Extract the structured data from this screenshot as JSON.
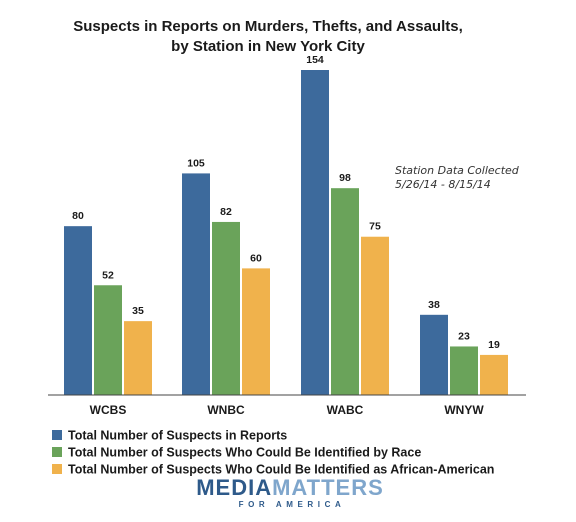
{
  "chart_data": {
    "type": "bar",
    "title": "Suspects in Reports on Murders, Thefts, and Assaults,",
    "subtitle": "by Station in New York City",
    "categories": [
      "WCBS",
      "WNBC",
      "WABC",
      "WNYW"
    ],
    "series": [
      {
        "name": "Total Number of Suspects in Reports",
        "color": "#3d6a9c",
        "values": [
          80,
          105,
          154,
          38
        ]
      },
      {
        "name": "Total Number of Suspects Who Could Be Identified by Race",
        "color": "#6aa35a",
        "values": [
          52,
          82,
          98,
          23
        ]
      },
      {
        "name": "Total Number of Suspects Who Could Be Identified as African-American",
        "color": "#f0b24c",
        "values": [
          35,
          60,
          75,
          19
        ]
      }
    ],
    "ylim": [
      0,
      154
    ],
    "grid": false,
    "legend_position": "bottom-left",
    "annotation": {
      "line1": "Station Data Collected",
      "line2": "5/26/14 - 8/15/14"
    }
  },
  "logo": {
    "main": "MEDIAMATTERS",
    "main_dark": "MEDIA",
    "main_light": "MATTERS",
    "sub": "FOR AMERICA"
  }
}
